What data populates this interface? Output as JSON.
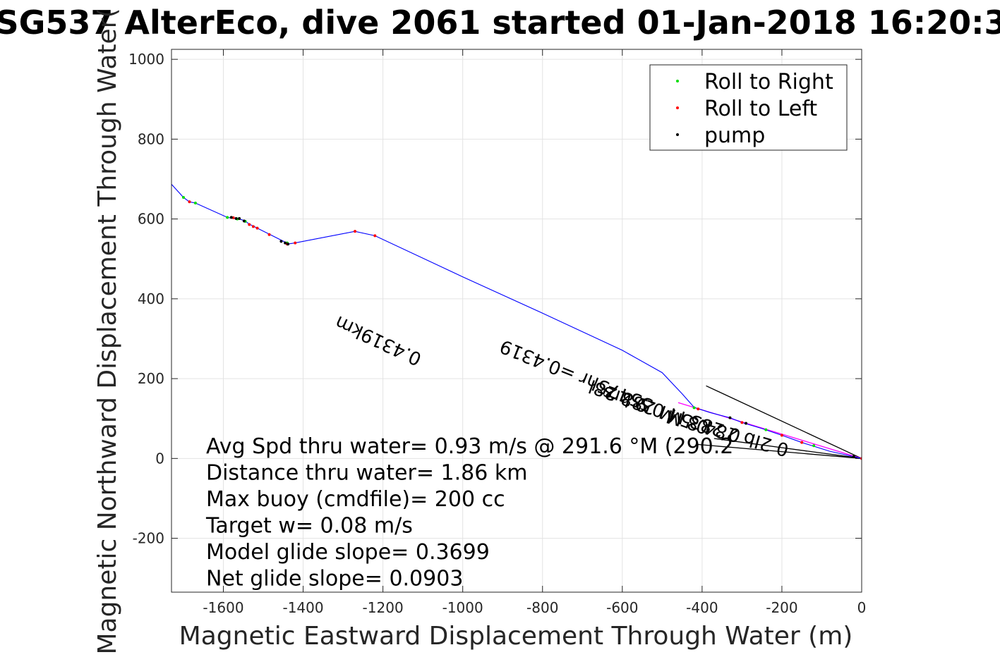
{
  "chart_data": {
    "type": "line",
    "title": "SG537 AlterEco, dive 2061 started 01-Jan-2018 16:20:3",
    "xlabel": "Magnetic Eastward Displacement Through Water (m)",
    "ylabel": "Magnetic Northward Displacement Through Water(",
    "xlim": [
      -1730,
      0
    ],
    "ylim": [
      -335,
      1025
    ],
    "xticks": [
      -1600,
      -1400,
      -1200,
      -1000,
      -800,
      -600,
      -400,
      -200,
      0
    ],
    "yticks": [
      -200,
      0,
      200,
      400,
      600,
      800,
      1000
    ],
    "grid": true,
    "legend_position": "top-right",
    "legend": [
      {
        "label": "Roll to Right",
        "color": "#00dd00"
      },
      {
        "label": "Roll to Left",
        "color": "#ff0000"
      },
      {
        "label": "pump",
        "color": "#000000"
      }
    ],
    "series": [
      {
        "name": "track",
        "color": "#0000ff",
        "points": [
          [
            -1730,
            687
          ],
          [
            -1700,
            654
          ],
          [
            -1685,
            643
          ],
          [
            -1670,
            640
          ],
          [
            -1590,
            604
          ],
          [
            -1575,
            602
          ],
          [
            -1560,
            600
          ],
          [
            -1545,
            595
          ],
          [
            -1535,
            587
          ],
          [
            -1525,
            582
          ],
          [
            -1515,
            577
          ],
          [
            -1485,
            562
          ],
          [
            -1445,
            542
          ],
          [
            -1440,
            537
          ],
          [
            -1420,
            540
          ],
          [
            -1270,
            569
          ],
          [
            -1220,
            558
          ],
          [
            -1000,
            455
          ],
          [
            -800,
            364
          ],
          [
            -600,
            271
          ],
          [
            -500,
            215
          ],
          [
            -450,
            162
          ],
          [
            -420,
            128
          ],
          [
            -380,
            115
          ],
          [
            -330,
            102
          ],
          [
            -300,
            90
          ],
          [
            -250,
            75
          ],
          [
            -200,
            58
          ],
          [
            -150,
            40
          ],
          [
            -80,
            18
          ],
          [
            0,
            0
          ]
        ]
      },
      {
        "name": "Roll to Right",
        "color": "#00dd00",
        "points": [
          [
            -1700,
            654
          ],
          [
            -1670,
            640
          ],
          [
            -1590,
            604
          ],
          [
            -1565,
            600
          ],
          [
            -1545,
            594
          ],
          [
            -1440,
            540
          ],
          [
            -420,
            127
          ],
          [
            -240,
            72
          ],
          [
            -120,
            32
          ]
        ]
      },
      {
        "name": "Roll to Left",
        "color": "#ff0000",
        "points": [
          [
            -1685,
            643
          ],
          [
            -1575,
            603
          ],
          [
            -1535,
            586
          ],
          [
            -1525,
            581
          ],
          [
            -1515,
            577
          ],
          [
            -1485,
            561
          ],
          [
            -1440,
            537
          ],
          [
            -1420,
            540
          ],
          [
            -1270,
            569
          ],
          [
            -1220,
            558
          ],
          [
            -410,
            124
          ],
          [
            -300,
            90
          ],
          [
            -200,
            58
          ],
          [
            -150,
            40
          ],
          [
            0,
            0
          ]
        ]
      },
      {
        "name": "pump",
        "color": "#000000",
        "points": [
          [
            -1580,
            604
          ],
          [
            -1568,
            601
          ],
          [
            -1560,
            601
          ],
          [
            -1548,
            595
          ],
          [
            -1455,
            544
          ],
          [
            -1445,
            540
          ],
          [
            -1438,
            537
          ],
          [
            -330,
            102
          ],
          [
            -290,
            88
          ],
          [
            -20,
            5
          ]
        ]
      }
    ],
    "black_lines": [
      [
        [
          -390,
          182
        ],
        [
          0,
          0
        ]
      ],
      [
        [
          -410,
          35
        ],
        [
          0,
          0
        ]
      ],
      [
        [
          -370,
          50
        ],
        [
          0,
          0
        ]
      ]
    ],
    "magenta_line": [
      [
        -460,
        140
      ],
      [
        0,
        0
      ]
    ],
    "overlay_labels": [
      {
        "text": "0.4319km",
        "x": -1100,
        "y": 260,
        "rotate": 205
      },
      {
        "text": "55475hr =0.4319",
        "x": -520,
        "y": 145,
        "rotate": 202
      },
      {
        "text": "0.5 M 288 28l",
        "x": -380,
        "y": 90,
        "rotate": 200
      },
      {
        "text": "0 283 M 0.9 hrs",
        "x": -300,
        "y": 70,
        "rotate": 198
      },
      {
        "text": "0 2Ib 284.8 M",
        "x": -180,
        "y": 35,
        "rotate": 196
      }
    ]
  },
  "annotations": [
    "Avg Spd thru water=  0.93 m/s @ 291.6 °M (290.2",
    "Distance thru water=  1.86 km",
    "Max buoy (cmdfile)= 200 cc",
    "Target w= 0.08 m/s",
    "Model glide slope= 0.3699",
    "Net glide slope= 0.0903"
  ]
}
